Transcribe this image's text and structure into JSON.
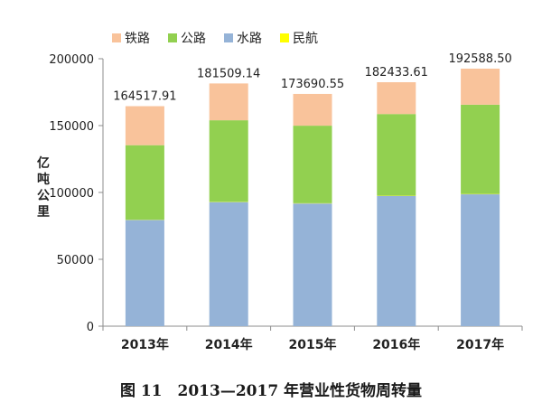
{
  "chart_data": {
    "type": "bar",
    "stacked": true,
    "ylabel": "亿吨公里",
    "xlabel": "",
    "ylim": [
      0,
      200000
    ],
    "yticks": [
      0,
      50000,
      100000,
      150000,
      200000
    ],
    "grid": false,
    "legend_position": "top-left",
    "categories": [
      "2013年",
      "2014年",
      "2015年",
      "2016年",
      "2017年"
    ],
    "series": [
      {
        "name": "铁路",
        "color": "#F9C39B",
        "values": [
          29174,
          27530,
          23754,
          23792,
          26962
        ]
      },
      {
        "name": "公路",
        "color": "#92D050",
        "values": [
          55738,
          61017,
          57956,
          61080,
          66772
        ]
      },
      {
        "name": "水路",
        "color": "#95B3D7",
        "values": [
          79436,
          92775,
          91772,
          97338,
          98611
        ]
      },
      {
        "name": "民航",
        "color": "#FFFF00",
        "values": [
          170,
          188,
          208,
          223,
          244
        ]
      }
    ],
    "stack_order": [
      "水路",
      "民航",
      "公路",
      "铁路"
    ],
    "totals": [
      "164517.91",
      "181509.14",
      "173690.55",
      "182433.61",
      "192588.50"
    ]
  },
  "caption": "图 11　2013—2017 年营业性货物周转量"
}
